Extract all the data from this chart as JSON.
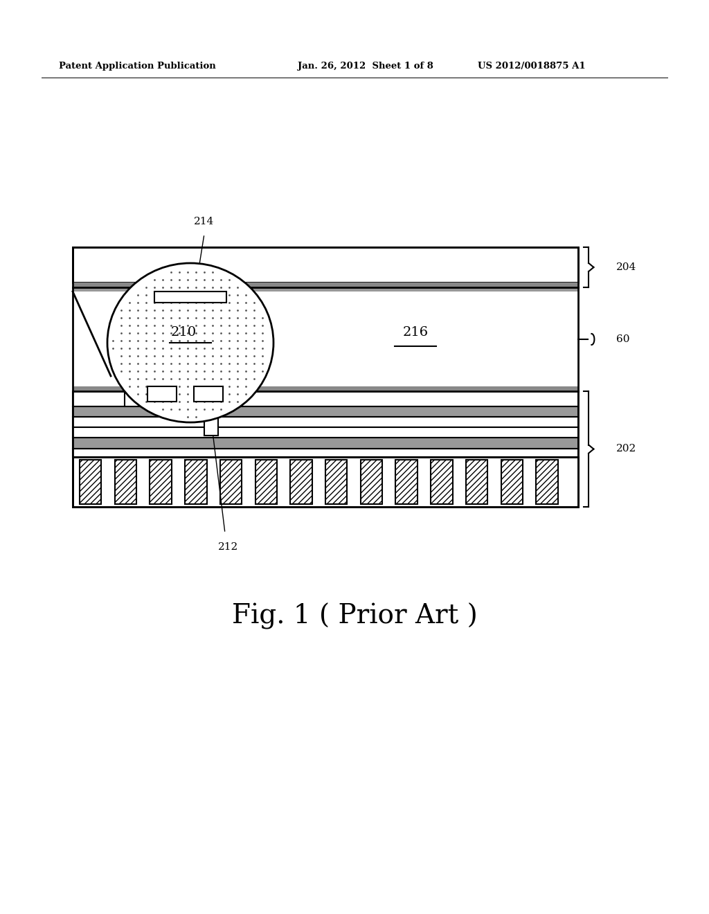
{
  "bg_color": "#ffffff",
  "line_color": "#000000",
  "header_left": "Patent Application Publication",
  "header_mid": "Jan. 26, 2012  Sheet 1 of 8",
  "header_right": "US 2012/0018875 A1",
  "fig_label": "Fig. 1 ( Prior Art )"
}
